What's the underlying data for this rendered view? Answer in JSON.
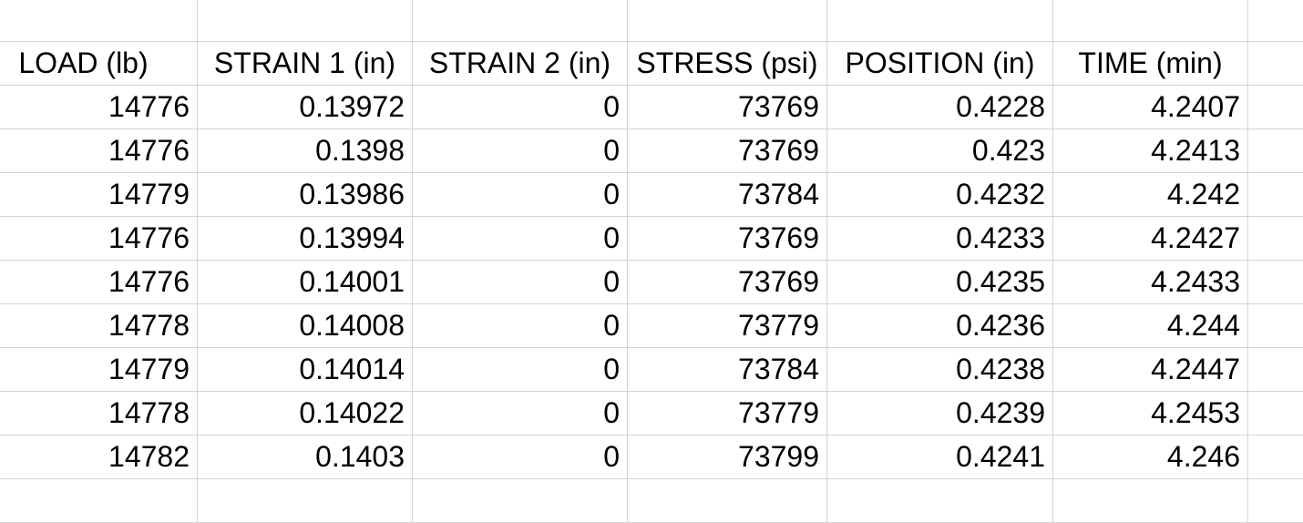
{
  "colors": {
    "background": "#ffffff",
    "gridline": "#d4d4d4",
    "text": "#000000"
  },
  "table": {
    "columns": [
      {
        "label": "LOAD (lb)"
      },
      {
        "label": "STRAIN 1 (in)"
      },
      {
        "label": "STRAIN 2 (in)"
      },
      {
        "label": "STRESS (psi)"
      },
      {
        "label": "POSITION (in)"
      },
      {
        "label": "TIME (min)"
      }
    ],
    "rows": [
      [
        "14776",
        "0.13972",
        "0",
        "73769",
        "0.4228",
        "4.2407"
      ],
      [
        "14776",
        "0.1398",
        "0",
        "73769",
        "0.423",
        "4.2413"
      ],
      [
        "14779",
        "0.13986",
        "0",
        "73784",
        "0.4232",
        "4.242"
      ],
      [
        "14776",
        "0.13994",
        "0",
        "73769",
        "0.4233",
        "4.2427"
      ],
      [
        "14776",
        "0.14001",
        "0",
        "73769",
        "0.4235",
        "4.2433"
      ],
      [
        "14778",
        "0.14008",
        "0",
        "73779",
        "0.4236",
        "4.244"
      ],
      [
        "14779",
        "0.14014",
        "0",
        "73784",
        "0.4238",
        "4.2447"
      ],
      [
        "14778",
        "0.14022",
        "0",
        "73779",
        "0.4239",
        "4.2453"
      ],
      [
        "14782",
        "0.1403",
        "0",
        "73799",
        "0.4241",
        "4.246"
      ]
    ]
  }
}
